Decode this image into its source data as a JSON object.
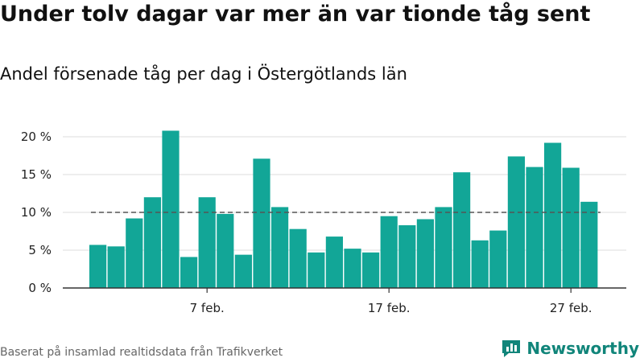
{
  "title": "Under tolv dagar var mer än var tionde tåg sent",
  "subtitle": "Andel försenade tåg per dag i Östergötlands län",
  "source": "Baserat på insamlad realtidsdata från Trafikverket",
  "brand": {
    "name": "Newsworthy",
    "logo_icon": "bar-chart-logo-icon",
    "color": "#11857a"
  },
  "chart_data": {
    "type": "bar",
    "days": [
      1,
      2,
      3,
      4,
      5,
      6,
      7,
      8,
      9,
      10,
      11,
      12,
      13,
      14,
      15,
      16,
      17,
      18,
      19,
      20,
      21,
      22,
      23,
      24,
      25,
      26,
      27,
      28
    ],
    "values": [
      5.7,
      5.5,
      9.2,
      12.0,
      20.8,
      4.1,
      12.0,
      9.8,
      4.4,
      17.1,
      10.7,
      7.8,
      4.7,
      6.8,
      5.2,
      4.7,
      9.5,
      8.3,
      9.1,
      10.7,
      15.3,
      6.3,
      7.6,
      17.4,
      16.0,
      19.2,
      15.9,
      11.4
    ],
    "unit": "%",
    "xticks": [
      {
        "day": 7,
        "label": "7 feb."
      },
      {
        "day": 17,
        "label": "17 feb."
      },
      {
        "day": 27,
        "label": "27 feb."
      }
    ],
    "yticks": [
      {
        "value": 0,
        "label": "0 %"
      },
      {
        "value": 5,
        "label": "5 %"
      },
      {
        "value": 10,
        "label": "10 %"
      },
      {
        "value": 15,
        "label": "15 %"
      },
      {
        "value": 20,
        "label": "20 %"
      }
    ],
    "ylim": [
      0,
      20
    ],
    "reference_line": {
      "value": 10,
      "style": "dashed"
    },
    "grid": true,
    "bar_color": "#12a697"
  }
}
